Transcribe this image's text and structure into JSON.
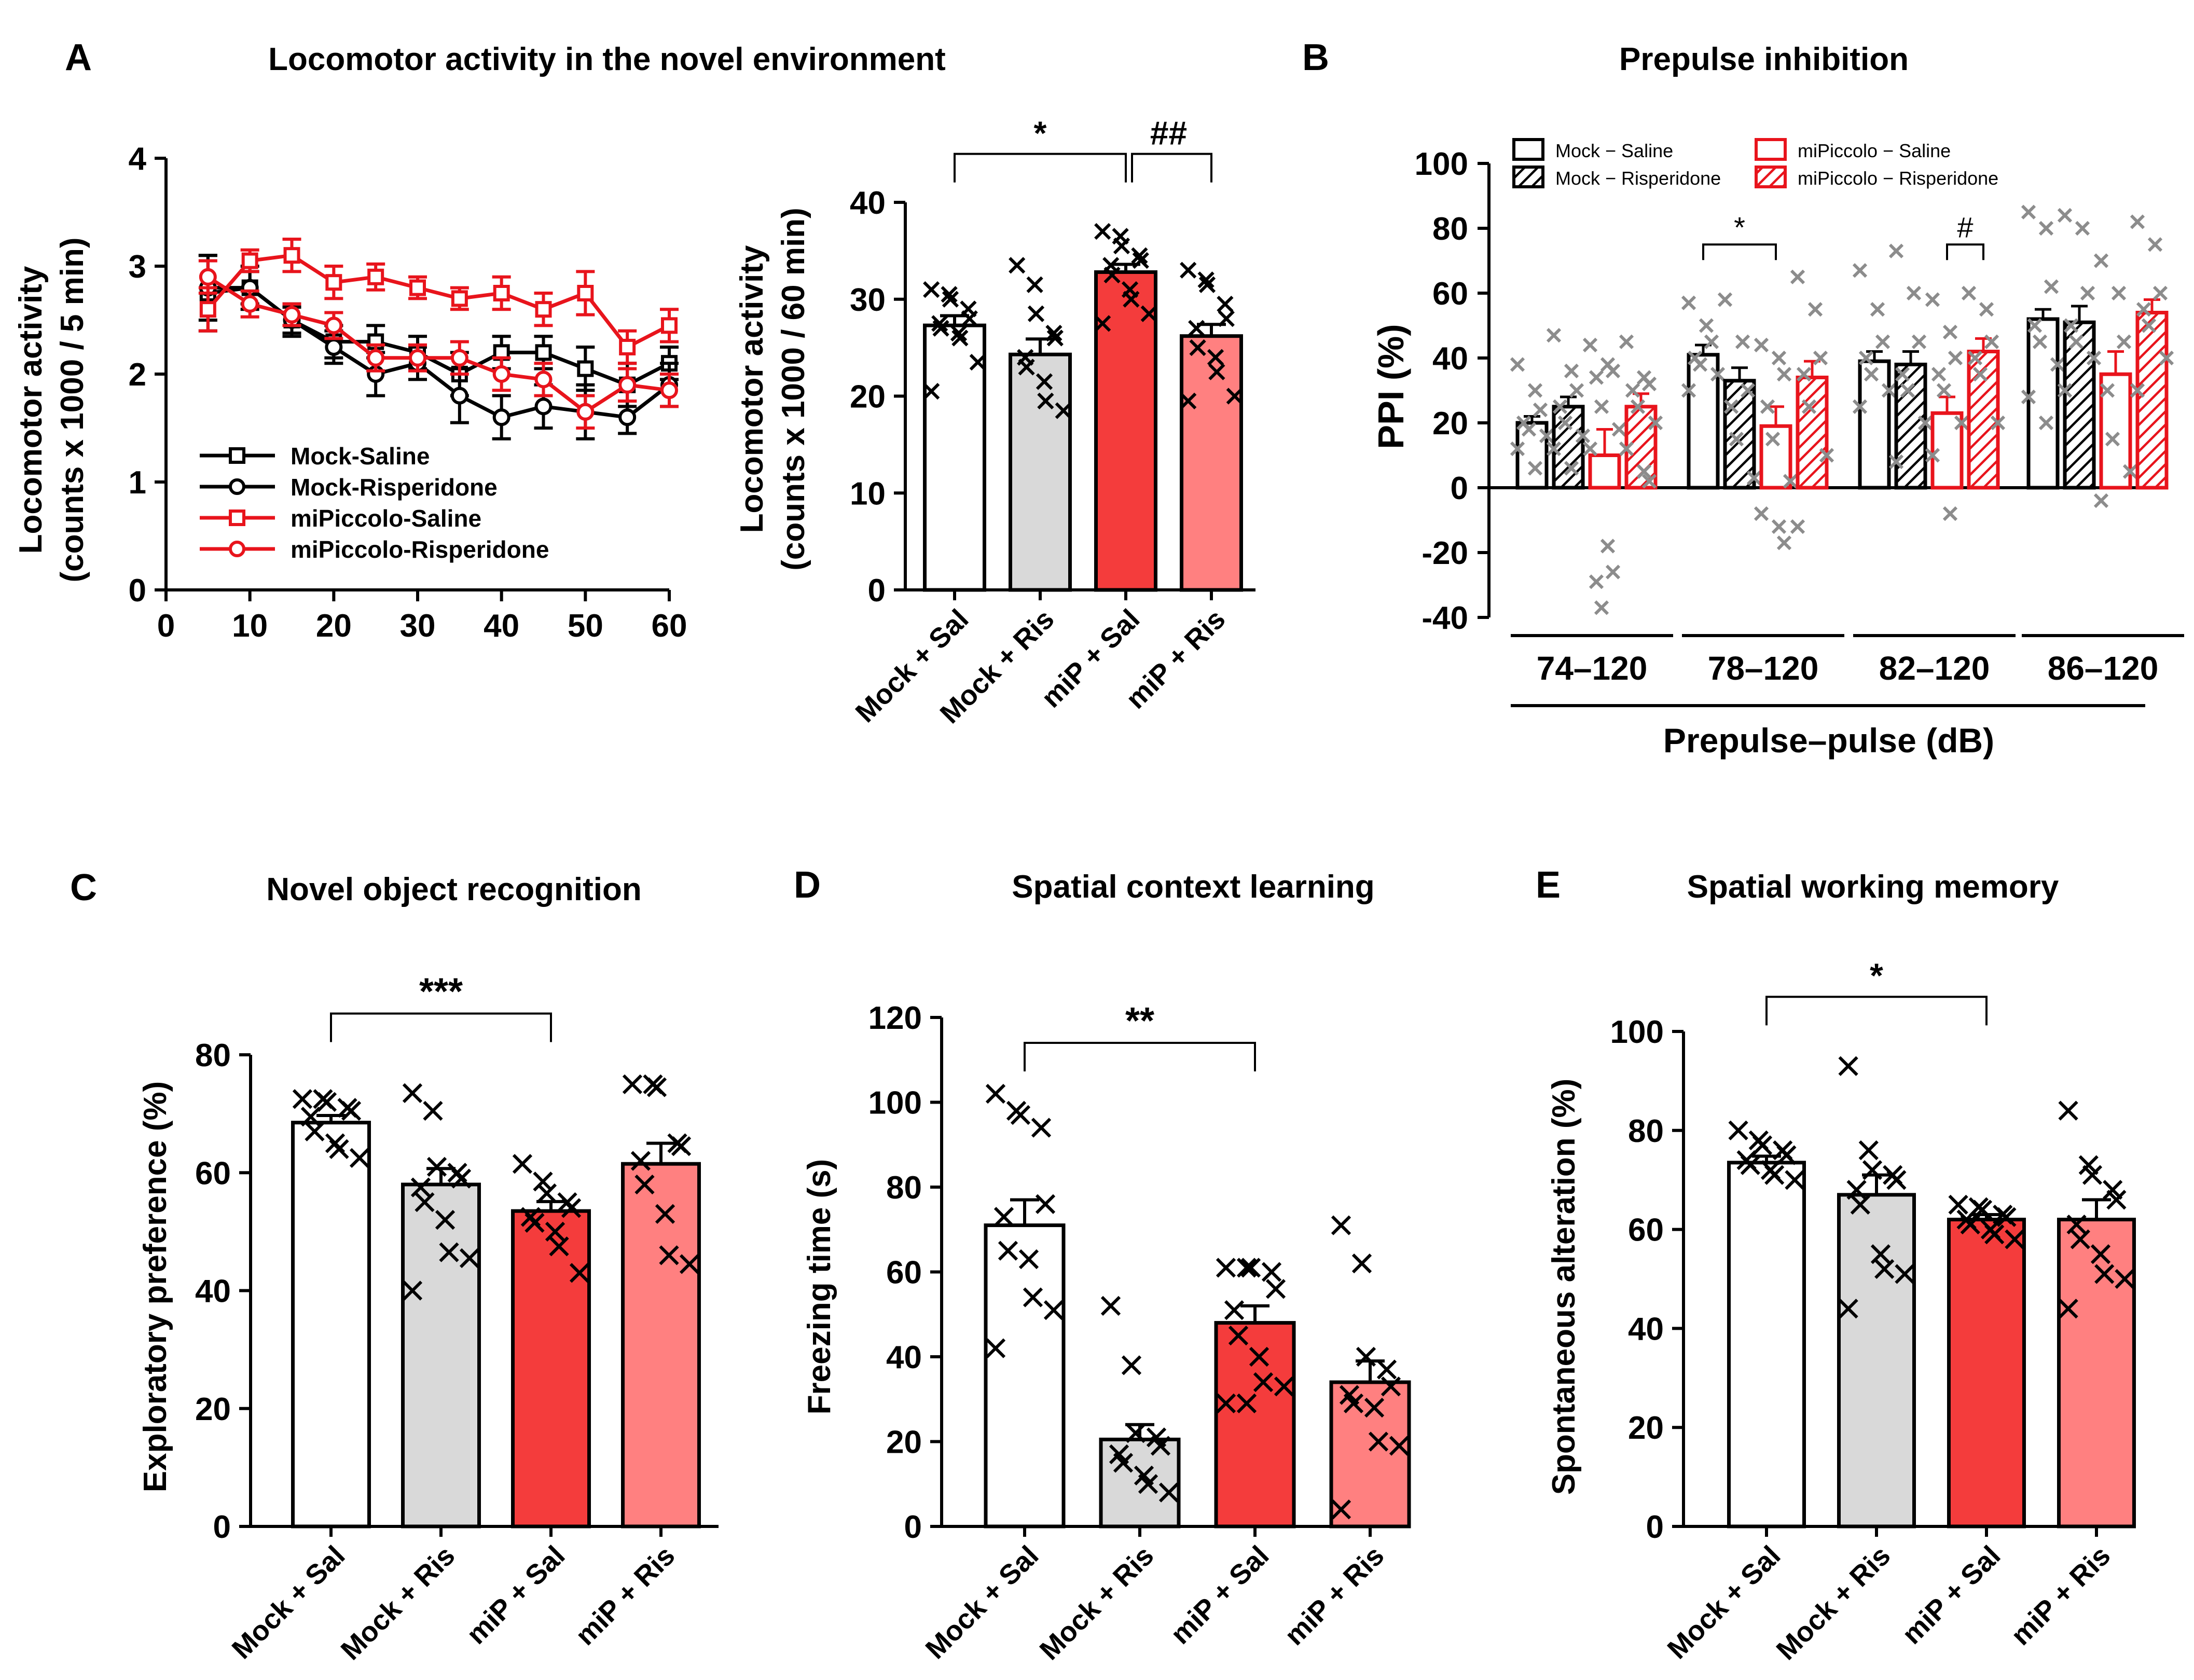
{
  "colors": {
    "black": "#000000",
    "red": "#e8141c",
    "mock_sal_fill": "#ffffff",
    "mock_ris_fill": "#d9d9d9",
    "mip_sal_fill": "#f43c3c",
    "mip_ris_fill": "#ff8080",
    "ppi_point": "#8c8c8c"
  },
  "chart_data": [
    {
      "id": "A-line",
      "panel_label": "A",
      "panel_title": "Locomotor activity in the novel environment",
      "type": "line",
      "ylabel_lines": [
        "Locomotor activity",
        "(counts x 1000 / 5 min)"
      ],
      "xlabel": "",
      "xlim": [
        0,
        60
      ],
      "ylim": [
        0,
        4
      ],
      "xticks": [
        0,
        10,
        20,
        30,
        40,
        50,
        60
      ],
      "yticks": [
        0,
        1,
        2,
        3,
        4
      ],
      "x": [
        5,
        10,
        15,
        20,
        25,
        30,
        35,
        40,
        45,
        50,
        55,
        60
      ],
      "series": [
        {
          "name": "Mock-Saline",
          "color": "#000000",
          "marker": "square",
          "values": [
            2.75,
            2.8,
            2.5,
            2.3,
            2.3,
            2.2,
            2.0,
            2.2,
            2.2,
            2.05,
            1.9,
            2.1
          ],
          "errors": [
            0.35,
            0.15,
            0.12,
            0.15,
            0.15,
            0.15,
            0.2,
            0.15,
            0.15,
            0.2,
            0.2,
            0.15
          ]
        },
        {
          "name": "Mock-Risperidone",
          "color": "#000000",
          "marker": "circle",
          "values": [
            2.8,
            2.8,
            2.5,
            2.25,
            2.0,
            2.1,
            1.8,
            1.6,
            1.7,
            1.65,
            1.6,
            1.9
          ],
          "errors": [
            0.3,
            0.2,
            0.15,
            0.15,
            0.2,
            0.15,
            0.25,
            0.2,
            0.2,
            0.25,
            0.15,
            0.2
          ]
        },
        {
          "name": "miPiccolo-Saline",
          "color": "#e8141c",
          "marker": "square",
          "values": [
            2.6,
            3.05,
            3.1,
            2.85,
            2.9,
            2.8,
            2.7,
            2.75,
            2.6,
            2.75,
            2.25,
            2.45
          ],
          "errors": [
            0.2,
            0.1,
            0.15,
            0.15,
            0.12,
            0.1,
            0.1,
            0.15,
            0.15,
            0.2,
            0.15,
            0.15
          ]
        },
        {
          "name": "miPiccolo-Risperidone",
          "color": "#e8141c",
          "marker": "circle",
          "values": [
            2.9,
            2.65,
            2.55,
            2.45,
            2.15,
            2.15,
            2.15,
            2.0,
            1.95,
            1.65,
            1.9,
            1.85
          ],
          "errors": [
            0.15,
            0.12,
            0.1,
            0.12,
            0.12,
            0.12,
            0.15,
            0.15,
            0.15,
            0.15,
            0.15,
            0.15
          ]
        }
      ],
      "legend": "bottom-left"
    },
    {
      "id": "A-bar",
      "panel_label": "",
      "panel_title": "",
      "type": "bar",
      "ylabel_lines": [
        "Locomotor activity",
        "(counts x 1000 / 60 min)"
      ],
      "categories": [
        "Mock + Sal",
        "Mock + Ris",
        "miP + Sal",
        "miP + Ris"
      ],
      "fills": [
        "#ffffff",
        "#d9d9d9",
        "#f43c3c",
        "#ff8080"
      ],
      "values": [
        27.3,
        24.3,
        32.8,
        26.2
      ],
      "errors": [
        1.0,
        1.6,
        0.8,
        1.2
      ],
      "points": [
        [
          31.0,
          30.5,
          30.0,
          29.0,
          28.0,
          27.5,
          27.0,
          26.5,
          26.0,
          23.5,
          20.5
        ],
        [
          33.5,
          31.5,
          28.5,
          26.5,
          26.0,
          24.0,
          23.0,
          21.5,
          19.5,
          18.5
        ],
        [
          37.0,
          36.5,
          35.5,
          34.5,
          34.0,
          33.5,
          32.5,
          31.0,
          30.0,
          28.5,
          27.5
        ],
        [
          33.0,
          32.0,
          31.5,
          29.5,
          28.0,
          27.0,
          25.0,
          24.0,
          22.5,
          20.0,
          19.5
        ]
      ],
      "ylim": [
        0,
        40
      ],
      "yticks": [
        0,
        10,
        20,
        30,
        40
      ],
      "significance": [
        {
          "from": 0,
          "to": 2,
          "label": "*",
          "y": 45
        },
        {
          "from": 2,
          "to": 3,
          "label": "##",
          "y": 45
        }
      ]
    },
    {
      "id": "B",
      "panel_label": "B",
      "panel_title": "Prepulse inhibition",
      "type": "bar",
      "ylabel_lines": [
        "PPI (%)"
      ],
      "group_labels": [
        "74–120",
        "78–120",
        "82–120",
        "86–120"
      ],
      "xlabel": "Prepulse–pulse (dB)",
      "series": [
        {
          "name": "Mock − Saline",
          "color": "#000000",
          "hatched": false,
          "values": [
            20,
            41,
            39,
            52
          ],
          "errors": [
            2,
            3,
            3,
            3
          ]
        },
        {
          "name": "Mock − Risperidone",
          "color": "#000000",
          "hatched": true,
          "values": [
            25,
            33,
            38,
            51
          ],
          "errors": [
            3,
            4,
            4,
            5
          ]
        },
        {
          "name": "miPiccolo − Saline",
          "color": "#e8141c",
          "hatched": false,
          "values": [
            10,
            19,
            23,
            35
          ],
          "errors": [
            8,
            6,
            5,
            7
          ]
        },
        {
          "name": "miPiccolo − Risperidone",
          "color": "#e8141c",
          "hatched": true,
          "values": [
            25,
            34,
            42,
            54
          ],
          "errors": [
            4,
            5,
            4,
            4
          ]
        }
      ],
      "points": [
        [
          [
            38,
            30,
            24,
            20,
            18,
            16,
            12,
            6
          ],
          [
            47,
            36,
            30,
            25,
            20,
            16,
            12,
            6
          ],
          [
            44,
            38,
            36,
            34,
            25,
            18,
            12,
            -18,
            -26,
            -29,
            -37
          ],
          [
            45,
            34,
            32,
            30,
            25,
            20,
            12,
            5,
            2
          ]
        ],
        [
          [
            57,
            50,
            45,
            40,
            38,
            35,
            30
          ],
          [
            58,
            45,
            30,
            25,
            15,
            3
          ],
          [
            44,
            40,
            35,
            25,
            15,
            2,
            -8,
            -12,
            -17
          ],
          [
            65,
            55,
            40,
            35,
            25,
            10,
            -12
          ]
        ],
        [
          [
            67,
            55,
            45,
            40,
            35,
            30,
            25
          ],
          [
            73,
            60,
            45,
            35,
            30,
            20,
            8
          ],
          [
            58,
            48,
            40,
            35,
            30,
            20,
            10,
            -8
          ],
          [
            60,
            55,
            45,
            40,
            35,
            20
          ]
        ],
        [
          [
            85,
            80,
            62,
            50,
            45,
            38,
            28,
            20
          ],
          [
            84,
            80,
            60,
            50,
            45,
            40,
            30
          ],
          [
            70,
            60,
            45,
            30,
            15,
            5,
            -4
          ],
          [
            82,
            75,
            60,
            55,
            50,
            40,
            30
          ]
        ]
      ],
      "ylim": [
        -40,
        100
      ],
      "yticks": [
        -40,
        -20,
        0,
        20,
        40,
        60,
        80,
        100
      ],
      "significance": [
        {
          "group": 1,
          "from": 0,
          "to": 2,
          "label": "*",
          "y": 75
        },
        {
          "group": 2,
          "from": 2,
          "to": 3,
          "label": "#",
          "y": 75
        }
      ]
    },
    {
      "id": "C",
      "panel_label": "C",
      "panel_title": "Novel object recognition",
      "type": "bar",
      "ylabel_lines": [
        "Exploratory preference (%)"
      ],
      "categories": [
        "Mock + Sal",
        "Mock + Ris",
        "miP + Sal",
        "miP + Ris"
      ],
      "fills": [
        "#ffffff",
        "#d9d9d9",
        "#f43c3c",
        "#ff8080"
      ],
      "values": [
        68.5,
        58.0,
        53.5,
        61.5
      ],
      "errors": [
        1.2,
        2.7,
        1.6,
        3.5
      ],
      "points": [
        [
          72.5,
          72.5,
          72.0,
          71.0,
          70.5,
          69.5,
          67.0,
          65.0,
          64.0,
          62.5
        ],
        [
          73.5,
          70.5,
          61.0,
          60.0,
          59.0,
          57.5,
          55.0,
          52.0,
          46.5,
          45.5,
          40.0
        ],
        [
          61.5,
          58.5,
          56.5,
          55.0,
          54.0,
          52.5,
          51.5,
          50.0,
          47.5,
          43.0
        ],
        [
          75.0,
          75.0,
          74.5,
          65.0,
          64.5,
          62.0,
          58.0,
          53.0,
          46.0,
          44.5
        ]
      ],
      "ylim": [
        0,
        80
      ],
      "yticks": [
        0,
        20,
        40,
        60,
        80
      ],
      "significance": [
        {
          "from": 0,
          "to": 2,
          "label": "***",
          "y": 87
        }
      ]
    },
    {
      "id": "D",
      "panel_label": "D",
      "panel_title": "Spatial context learning",
      "type": "bar",
      "ylabel_lines": [
        "Freezing time (s)"
      ],
      "categories": [
        "Mock + Sal",
        "Mock + Ris",
        "miP + Sal",
        "miP + Ris"
      ],
      "fills": [
        "#ffffff",
        "#d9d9d9",
        "#f43c3c",
        "#ff8080"
      ],
      "values": [
        71.0,
        20.5,
        48.0,
        34.0
      ],
      "errors": [
        6.0,
        3.5,
        4.0,
        5.0
      ],
      "points": [
        [
          102.0,
          98.0,
          97.0,
          94.0,
          76.0,
          73.0,
          65.0,
          63.0,
          54.0,
          51.0,
          42.0
        ],
        [
          52.0,
          38.0,
          22.0,
          21.0,
          19.0,
          17.0,
          15.0,
          12.0,
          10.0,
          8.0
        ],
        [
          61.0,
          61.0,
          61.0,
          60.0,
          56.0,
          51.0,
          45.0,
          40.0,
          34.0,
          33.0,
          29.0,
          29.0
        ],
        [
          71.0,
          62.0,
          40.0,
          37.0,
          33.0,
          31.0,
          29.0,
          28.0,
          20.0,
          19.0,
          4.0
        ]
      ],
      "ylim": [
        0,
        120
      ],
      "yticks": [
        0,
        20,
        40,
        60,
        80,
        100,
        120
      ],
      "significance": [
        {
          "from": 0,
          "to": 2,
          "label": "**",
          "y": 114
        }
      ]
    },
    {
      "id": "E",
      "panel_label": "E",
      "panel_title": "Spatial working memory",
      "type": "bar",
      "ylabel_lines": [
        "Spontaneous alteration (%)"
      ],
      "categories": [
        "Mock + Sal",
        "Mock + Ris",
        "miP + Sal",
        "miP + Ris"
      ],
      "fills": [
        "#ffffff",
        "#d9d9d9",
        "#f43c3c",
        "#ff8080"
      ],
      "values": [
        73.5,
        67.0,
        62.0,
        62.0
      ],
      "errors": [
        1.3,
        4.0,
        1.0,
        4.0
      ],
      "points": [
        [
          80.0,
          78.0,
          77.0,
          76.0,
          75.0,
          74.0,
          73.0,
          72.0,
          71.0,
          70.0
        ],
        [
          93.0,
          76.0,
          72.0,
          71.0,
          70.0,
          68.0,
          65.0,
          55.0,
          52.0,
          51.0,
          44.0
        ],
        [
          65.0,
          64.5,
          64.0,
          63.0,
          62.5,
          62.0,
          61.0,
          60.0,
          59.0,
          58.0
        ],
        [
          84.0,
          73.0,
          71.0,
          68.0,
          66.0,
          61.0,
          58.0,
          55.0,
          51.0,
          50.0,
          44.0
        ]
      ],
      "ylim": [
        0,
        100
      ],
      "yticks": [
        0,
        20,
        40,
        60,
        80,
        100
      ],
      "significance": [
        {
          "from": 0,
          "to": 2,
          "label": "*",
          "y": 107
        }
      ]
    }
  ]
}
